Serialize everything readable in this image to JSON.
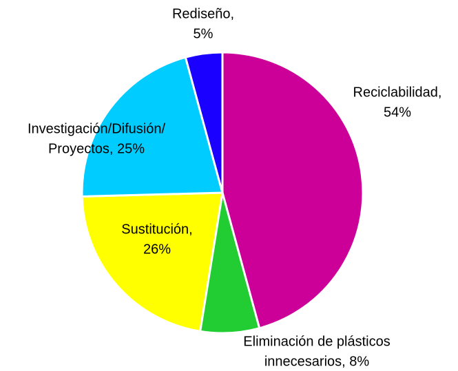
{
  "chart_data": {
    "type": "pie",
    "labels": [
      [
        "Reciclabilidad,",
        "54%"
      ],
      [
        "Eliminación de plásticos",
        "innecesarios, 8%"
      ],
      [
        "Sustitución,",
        "26%"
      ],
      [
        "Investigación/Difusión/",
        "Proyectos, 25%"
      ],
      [
        "Rediseño,",
        "5%"
      ]
    ],
    "values": [
      54,
      8,
      26,
      25,
      5
    ],
    "colors": [
      "#cc0099",
      "#22cc33",
      "#ffff00",
      "#00ccff",
      "#1a00ff"
    ]
  }
}
